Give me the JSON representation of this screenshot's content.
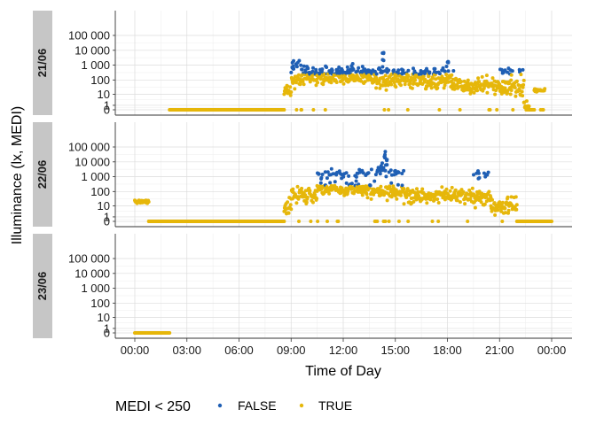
{
  "chart_data": {
    "type": "scatter",
    "xlabel": "Time of Day",
    "ylabel": "Illuminance (lx, MEDI)",
    "x_ticks": [
      "00:00",
      "03:00",
      "06:00",
      "09:00",
      "12:00",
      "15:00",
      "18:00",
      "21:00",
      "00:00"
    ],
    "x_range_hours": [
      0,
      24
    ],
    "y_scale": "pseudo-log",
    "y_ticks": [
      "0",
      "1",
      "10",
      "100",
      "1 000",
      "10 000",
      "100 000"
    ],
    "y_tick_values": [
      0,
      1,
      10,
      100,
      1000,
      10000,
      100000
    ],
    "legend": {
      "title": "MEDI < 250",
      "position": "bottom",
      "entries": [
        {
          "label": "FALSE",
          "color": "#1f5fb4"
        },
        {
          "label": "TRUE",
          "color": "#e6b70a"
        }
      ]
    },
    "strip_color": "#c6c6c6",
    "panels": [
      {
        "label": "21/06",
        "segments": [
          {
            "start": 2.0,
            "end": 8.6,
            "level": 0,
            "spread": 0
          },
          {
            "start": 8.6,
            "end": 9.0,
            "level": 15,
            "spread": 0.5
          },
          {
            "start": 9.0,
            "end": 9.6,
            "level": 100,
            "spread": 0.6,
            "highs": 1200
          },
          {
            "start": 9.6,
            "end": 13.5,
            "level": 150,
            "spread": 0.35,
            "highs": 450
          },
          {
            "start": 13.5,
            "end": 18.3,
            "level": 90,
            "spread": 0.45,
            "highs": 350
          },
          {
            "start": 18.3,
            "end": 21.0,
            "level": 40,
            "spread": 0.45
          },
          {
            "start": 21.0,
            "end": 22.4,
            "level": 30,
            "spread": 0.5,
            "highs": 400
          },
          {
            "start": 22.4,
            "end": 22.7,
            "level": 1,
            "spread": 0.5
          },
          {
            "start": 22.7,
            "end": 23.0,
            "level": 0,
            "spread": 0
          },
          {
            "start": 23.0,
            "end": 23.6,
            "level": 20,
            "spread": 0.1
          }
        ],
        "spikes": [
          {
            "t": 14.3,
            "v": 8000
          },
          {
            "t": 9.1,
            "v": 2000
          },
          {
            "t": 12.5,
            "v": 1500
          },
          {
            "t": 18.0,
            "v": 2500
          }
        ]
      },
      {
        "label": "22/06",
        "segments": [
          {
            "start": 0.0,
            "end": 0.8,
            "level": 20,
            "spread": 0.1
          },
          {
            "start": 0.8,
            "end": 8.6,
            "level": 0,
            "spread": 0
          },
          {
            "start": 8.6,
            "end": 9.0,
            "level": 5,
            "spread": 0.6
          },
          {
            "start": 9.0,
            "end": 10.5,
            "level": 60,
            "spread": 0.5
          },
          {
            "start": 10.5,
            "end": 13.3,
            "level": 150,
            "spread": 0.35,
            "highs": 1500
          },
          {
            "start": 13.3,
            "end": 15.5,
            "level": 100,
            "spread": 0.45,
            "highs": 2000
          },
          {
            "start": 15.5,
            "end": 19.5,
            "level": 50,
            "spread": 0.45
          },
          {
            "start": 19.5,
            "end": 20.5,
            "level": 40,
            "spread": 0.5,
            "highs": 1500
          },
          {
            "start": 20.5,
            "end": 22.0,
            "level": 10,
            "spread": 0.6
          },
          {
            "start": 22.0,
            "end": 24.0,
            "level": 0,
            "spread": 0
          }
        ],
        "spikes": [
          {
            "t": 14.4,
            "v": 60000
          },
          {
            "t": 14.2,
            "v": 10000
          },
          {
            "t": 14.5,
            "v": 20000
          }
        ]
      },
      {
        "label": "23/06",
        "segments": [
          {
            "start": 0.0,
            "end": 2.0,
            "level": 0,
            "spread": 0
          }
        ],
        "spikes": []
      }
    ]
  }
}
